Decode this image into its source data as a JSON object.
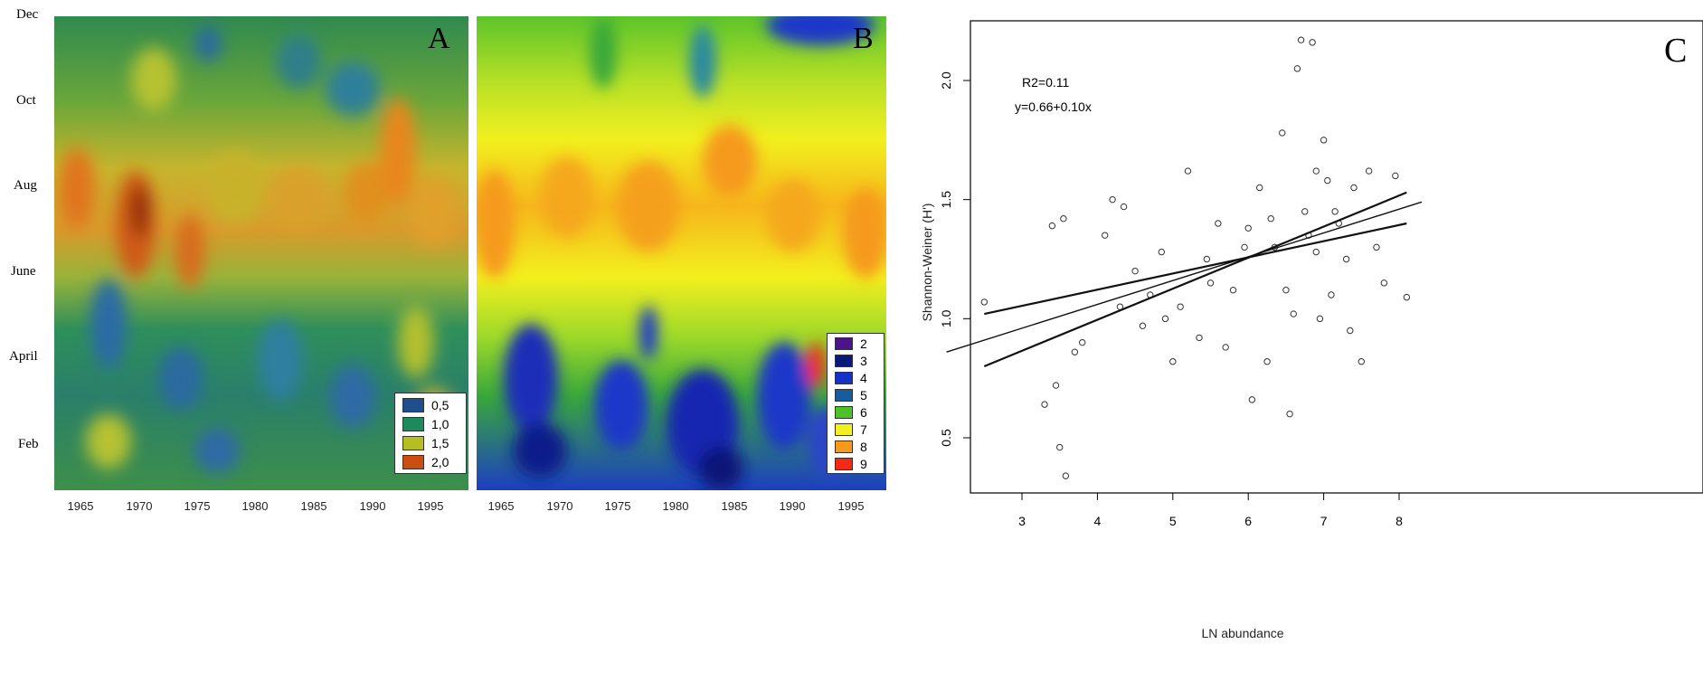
{
  "chart_data": [
    {
      "type": "heatmap",
      "panel_label": "A",
      "x_ticks": [
        "1965",
        "1970",
        "1975",
        "1980",
        "1985",
        "1990",
        "1995"
      ],
      "y_ticks": [
        "Dec",
        "Oct",
        "Aug",
        "June",
        "April",
        "Feb"
      ],
      "legend": [
        {
          "label": "0,5",
          "color": "#1f4e8c"
        },
        {
          "label": "1,0",
          "color": "#1d8a5e"
        },
        {
          "label": "1,5",
          "color": "#b5bf22"
        },
        {
          "label": "2,0",
          "color": "#cc4d12"
        }
      ]
    },
    {
      "type": "heatmap",
      "panel_label": "B",
      "x_ticks": [
        "1965",
        "1970",
        "1975",
        "1980",
        "1985",
        "1990",
        "1995"
      ],
      "legend": [
        {
          "label": "2",
          "color": "#4b148c"
        },
        {
          "label": "3",
          "color": "#0a1a7a"
        },
        {
          "label": "4",
          "color": "#1432c8"
        },
        {
          "label": "5",
          "color": "#175d9e"
        },
        {
          "label": "6",
          "color": "#4cc22a"
        },
        {
          "label": "7",
          "color": "#f2f01e"
        },
        {
          "label": "8",
          "color": "#f59a1c"
        },
        {
          "label": "9",
          "color": "#f52a14"
        }
      ]
    },
    {
      "type": "scatter",
      "panel_label": "C",
      "xlabel": "LN abundance",
      "ylabel": "Shannon-Weiner (H')",
      "x_ticks": [
        3,
        4,
        5,
        6,
        7,
        8
      ],
      "y_ticks": [
        "0.5",
        "1.0",
        "1.5",
        "2.0"
      ],
      "xlim": [
        2.4,
        8.2
      ],
      "ylim": [
        0.3,
        2.25
      ],
      "annotations": [
        "R2=0.11",
        "y=0.66+0.10x"
      ],
      "regression": {
        "intercept": 0.66,
        "slope": 0.1
      },
      "points_sample": [
        [
          2.5,
          1.07
        ],
        [
          3.3,
          0.64
        ],
        [
          3.45,
          0.72
        ],
        [
          3.5,
          0.46
        ],
        [
          3.58,
          0.34
        ],
        [
          3.4,
          1.39
        ],
        [
          3.55,
          1.42
        ],
        [
          3.7,
          0.86
        ],
        [
          3.8,
          0.9
        ],
        [
          4.1,
          1.35
        ],
        [
          4.2,
          1.5
        ],
        [
          4.35,
          1.47
        ],
        [
          4.5,
          1.2
        ],
        [
          4.6,
          0.97
        ],
        [
          4.7,
          1.1
        ],
        [
          4.85,
          1.28
        ],
        [
          5.0,
          0.82
        ],
        [
          5.1,
          1.05
        ],
        [
          5.2,
          1.62
        ],
        [
          5.35,
          0.92
        ],
        [
          5.45,
          1.25
        ],
        [
          5.6,
          1.4
        ],
        [
          5.7,
          0.88
        ],
        [
          5.8,
          1.12
        ],
        [
          5.95,
          1.3
        ],
        [
          6.05,
          0.66
        ],
        [
          6.15,
          1.55
        ],
        [
          6.25,
          0.82
        ],
        [
          6.35,
          1.3
        ],
        [
          6.45,
          1.78
        ],
        [
          6.55,
          0.6
        ],
        [
          6.6,
          1.02
        ],
        [
          6.65,
          2.05
        ],
        [
          6.7,
          2.17
        ],
        [
          6.75,
          1.45
        ],
        [
          6.8,
          1.35
        ],
        [
          6.85,
          2.16
        ],
        [
          6.9,
          1.62
        ],
        [
          6.95,
          1.0
        ],
        [
          7.0,
          1.75
        ],
        [
          7.05,
          1.58
        ],
        [
          7.1,
          1.1
        ],
        [
          7.2,
          1.4
        ],
        [
          7.3,
          1.25
        ],
        [
          7.4,
          1.55
        ],
        [
          7.5,
          0.82
        ],
        [
          7.6,
          1.62
        ],
        [
          7.7,
          1.3
        ],
        [
          7.8,
          1.15
        ],
        [
          7.95,
          1.6
        ],
        [
          8.1,
          1.09
        ],
        [
          4.3,
          1.05
        ],
        [
          4.9,
          1.0
        ],
        [
          5.5,
          1.15
        ],
        [
          6.0,
          1.38
        ],
        [
          6.3,
          1.42
        ],
        [
          6.5,
          1.12
        ],
        [
          6.9,
          1.28
        ],
        [
          7.15,
          1.45
        ],
        [
          7.35,
          0.95
        ]
      ]
    }
  ]
}
